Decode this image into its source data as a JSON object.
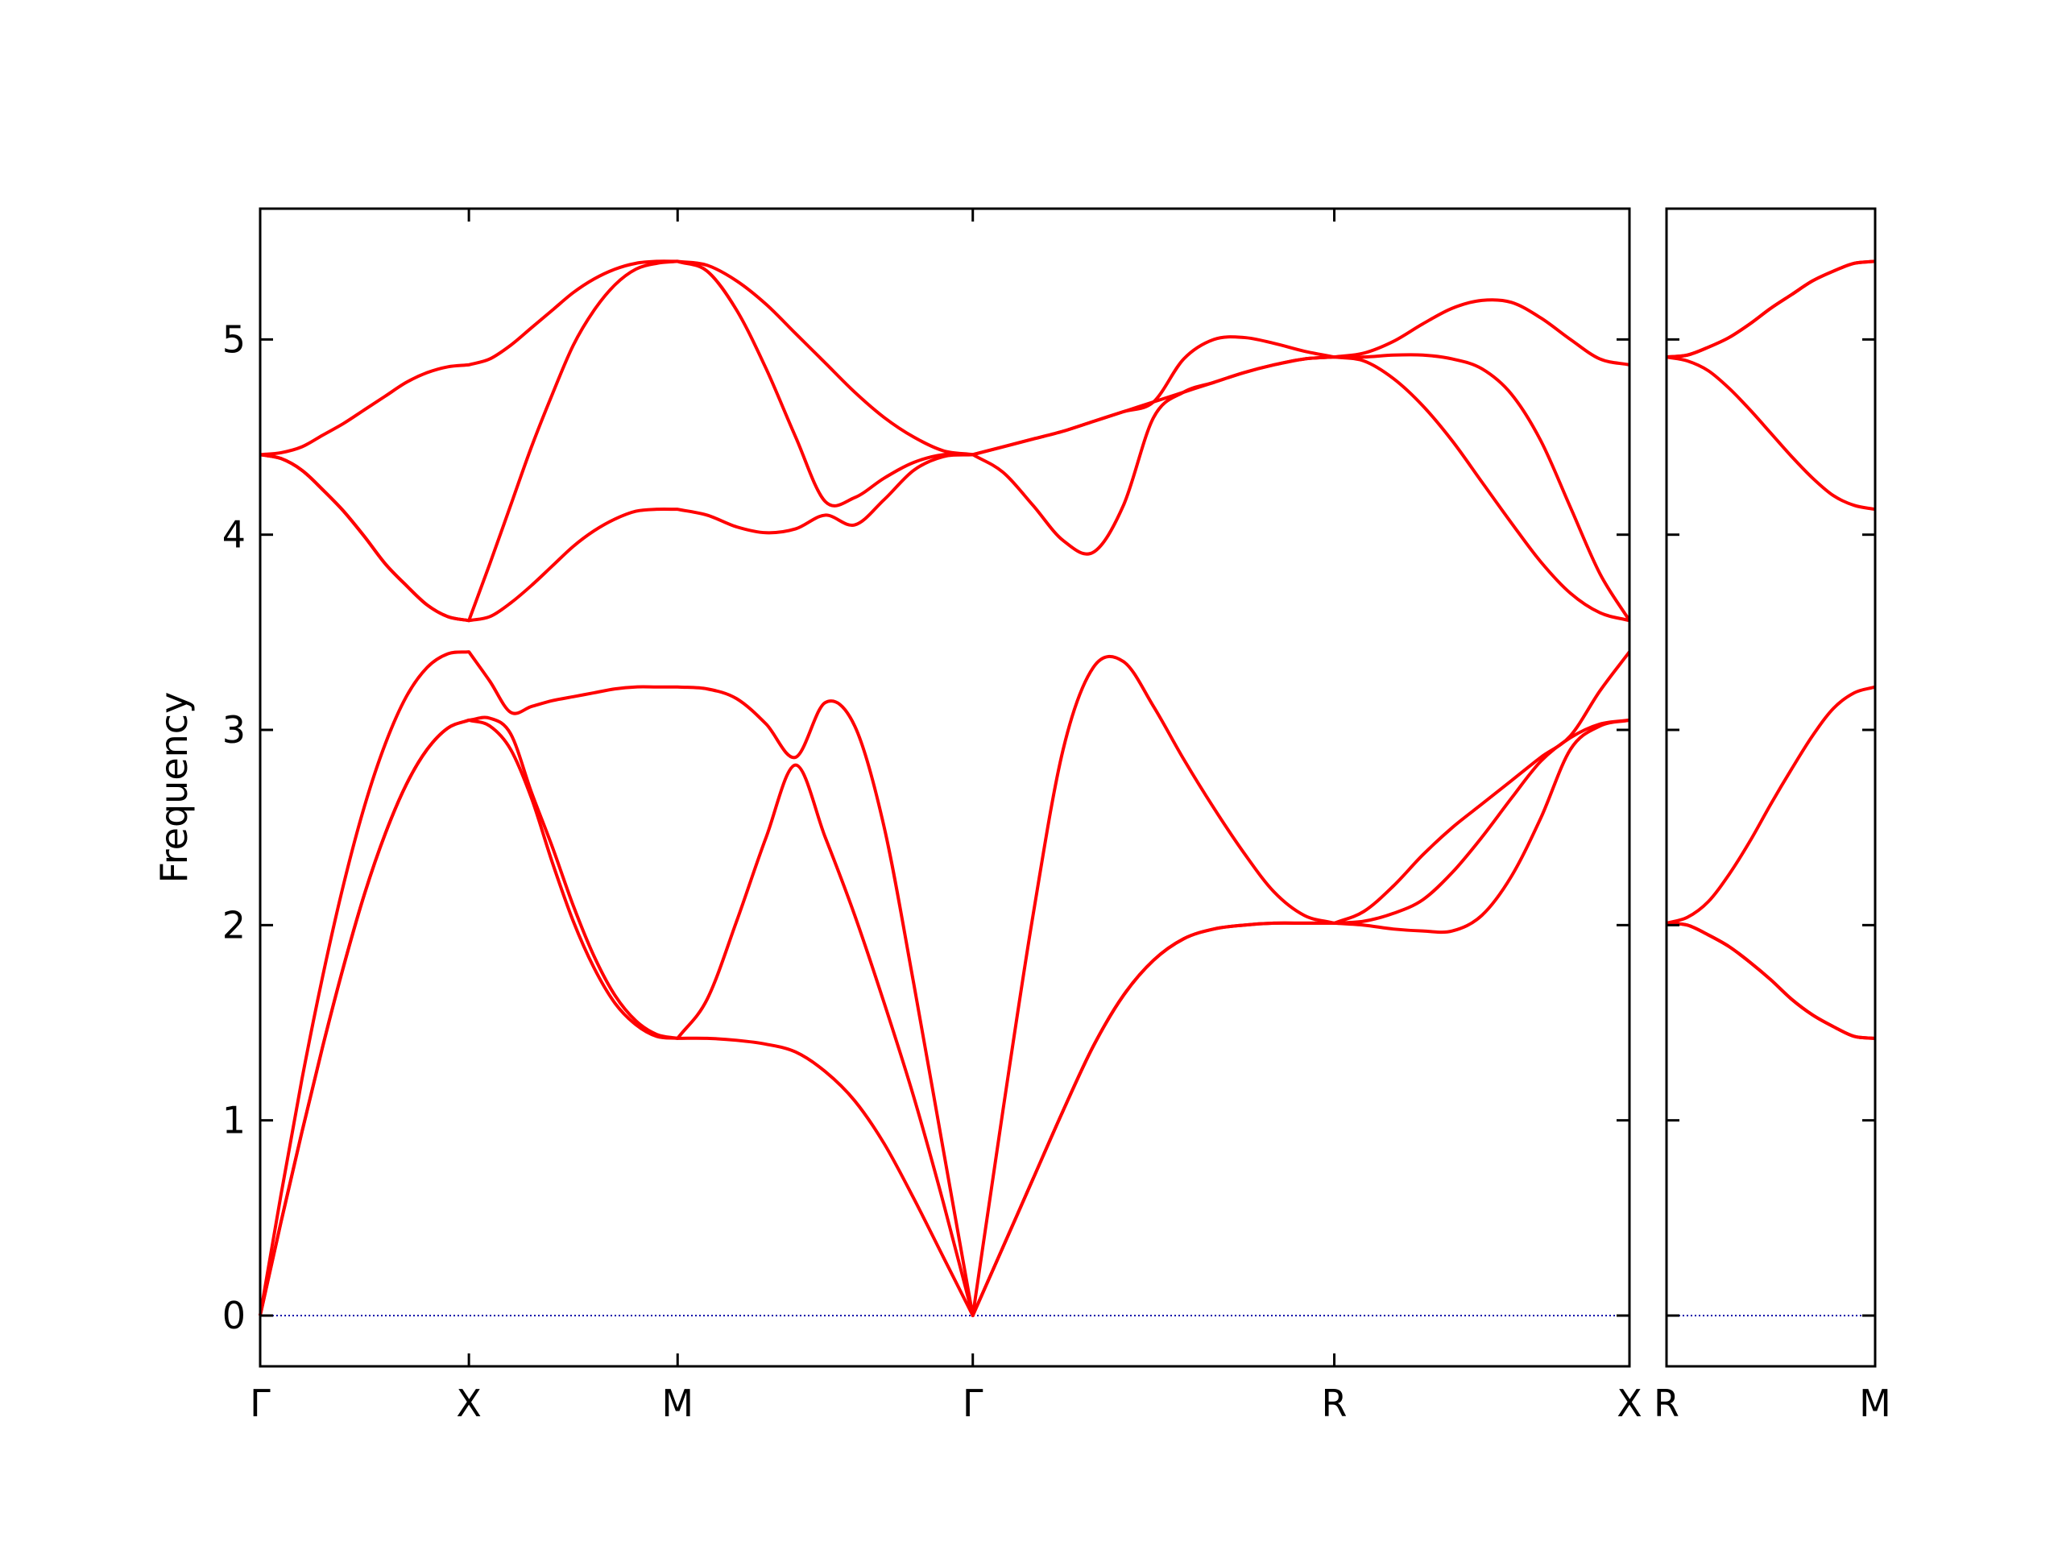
{
  "chart_data": [
    {
      "type": "line",
      "ylabel": "Frequency",
      "color": "#ff0000",
      "xlim": [
        0,
        3.2802
      ],
      "ylim": [
        -0.26,
        5.67
      ],
      "xticks": [
        {
          "value": 0,
          "label": "Γ"
        },
        {
          "value": 0.5,
          "label": "X"
        },
        {
          "value": 1.0,
          "label": "M"
        },
        {
          "value": 1.7071,
          "label": "Γ"
        },
        {
          "value": 2.5731,
          "label": "R"
        },
        {
          "value": 3.2802,
          "label": "X"
        }
      ],
      "yticks": [
        0,
        1,
        2,
        3,
        4,
        5
      ],
      "ytick_labels": true,
      "hline": {
        "value": 0,
        "color": "#0000aa"
      },
      "x": [
        0,
        0.05,
        0.1,
        0.15,
        0.2,
        0.25,
        0.3,
        0.35,
        0.4,
        0.45,
        0.5,
        0.55,
        0.6,
        0.65,
        0.7,
        0.75,
        0.8,
        0.85,
        0.9,
        0.95,
        1.0,
        1.0707,
        1.1414,
        1.2121,
        1.2828,
        1.3536,
        1.4243,
        1.495,
        1.5657,
        1.6364,
        1.7071,
        1.7793,
        1.8514,
        1.9236,
        1.9958,
        2.068,
        2.1401,
        2.2123,
        2.2845,
        2.3566,
        2.4288,
        2.501,
        2.5731,
        2.6438,
        2.7145,
        2.7852,
        2.8559,
        2.9266,
        2.9974,
        3.0681,
        3.1388,
        3.2095,
        3.2802
      ],
      "series": [
        {
          "values": [
            0,
            0.48,
            0.94,
            1.38,
            1.79,
            2.16,
            2.47,
            2.72,
            2.9,
            3.01,
            3.05,
            3.02,
            2.9,
            2.65,
            2.32,
            2.02,
            1.78,
            1.6,
            1.49,
            1.43,
            1.42,
            1.42,
            1.41,
            1.39,
            1.35,
            1.25,
            1.1,
            0.88,
            0.6,
            0.3,
            0,
            0.35,
            0.7,
            1.05,
            1.38,
            1.64,
            1.82,
            1.93,
            1.98,
            2.0,
            2.01,
            2.01,
            2.01,
            2.0,
            1.98,
            1.97,
            1.97,
            2.05,
            2.25,
            2.55,
            2.9,
            3.02,
            3.05
          ]
        },
        {
          "values": [
            0,
            0.48,
            0.94,
            1.38,
            1.79,
            2.16,
            2.47,
            2.72,
            2.9,
            3.01,
            3.05,
            3.06,
            2.98,
            2.68,
            2.4,
            2.1,
            1.84,
            1.64,
            1.51,
            1.44,
            1.42,
            1.62,
            2.02,
            2.45,
            2.82,
            2.45,
            2.05,
            1.6,
            1.12,
            0.58,
            0,
            0.35,
            0.7,
            1.05,
            1.38,
            1.64,
            1.82,
            1.93,
            1.98,
            2.0,
            2.01,
            2.01,
            2.01,
            2.02,
            2.06,
            2.13,
            2.27,
            2.45,
            2.65,
            2.84,
            2.96,
            3.03,
            3.05
          ]
        },
        {
          "values": [
            0,
            0.62,
            1.21,
            1.74,
            2.21,
            2.61,
            2.93,
            3.17,
            3.32,
            3.39,
            3.4,
            3.25,
            3.09,
            3.12,
            3.15,
            3.17,
            3.19,
            3.21,
            3.22,
            3.22,
            3.22,
            3.21,
            3.16,
            3.03,
            2.86,
            3.14,
            3.02,
            2.5,
            1.7,
            0.85,
            0,
            1.05,
            2.05,
            2.9,
            3.32,
            3.35,
            3.12,
            2.85,
            2.6,
            2.37,
            2.17,
            2.05,
            2.01,
            2.07,
            2.2,
            2.36,
            2.5,
            2.62,
            2.74,
            2.86,
            2.97,
            3.2,
            3.4
          ]
        },
        {
          "values": [
            4.41,
            4.39,
            4.33,
            4.23,
            4.12,
            3.99,
            3.85,
            3.74,
            3.64,
            3.58,
            3.56,
            3.58,
            3.65,
            3.74,
            3.84,
            3.94,
            4.02,
            4.08,
            4.12,
            4.13,
            4.13,
            4.1,
            4.04,
            4.01,
            4.03,
            4.1,
            4.05,
            4.18,
            4.33,
            4.4,
            4.41,
            4.32,
            4.15,
            3.97,
            3.91,
            4.15,
            4.6,
            4.73,
            4.78,
            4.83,
            4.87,
            4.9,
            4.91,
            4.89,
            4.8,
            4.66,
            4.48,
            4.27,
            4.06,
            3.86,
            3.7,
            3.6,
            3.56
          ]
        },
        {
          "values": [
            4.41,
            4.39,
            4.33,
            4.23,
            4.12,
            3.99,
            3.85,
            3.74,
            3.64,
            3.58,
            3.56,
            3.85,
            4.15,
            4.45,
            4.72,
            4.97,
            5.15,
            5.28,
            5.36,
            5.39,
            5.4,
            5.35,
            5.15,
            4.85,
            4.5,
            4.17,
            4.19,
            4.29,
            4.37,
            4.41,
            4.41,
            4.45,
            4.49,
            4.53,
            4.58,
            4.63,
            4.68,
            4.73,
            4.78,
            4.83,
            4.87,
            4.9,
            4.91,
            4.91,
            4.92,
            4.92,
            4.9,
            4.85,
            4.72,
            4.48,
            4.14,
            3.8,
            3.56
          ]
        },
        {
          "values": [
            4.41,
            4.42,
            4.45,
            4.51,
            4.57,
            4.64,
            4.71,
            4.78,
            4.83,
            4.86,
            4.87,
            4.9,
            4.97,
            5.06,
            5.15,
            5.24,
            5.31,
            5.36,
            5.39,
            5.4,
            5.4,
            5.38,
            5.3,
            5.18,
            5.03,
            4.88,
            4.73,
            4.6,
            4.5,
            4.43,
            4.41,
            4.45,
            4.49,
            4.53,
            4.58,
            4.63,
            4.68,
            4.9,
            5.0,
            5.01,
            4.98,
            4.94,
            4.91,
            4.93,
            4.99,
            5.08,
            5.16,
            5.2,
            5.19,
            5.11,
            5.0,
            4.9,
            4.87
          ]
        }
      ]
    },
    {
      "type": "line",
      "color": "#ff0000",
      "xlim": [
        0,
        0.5
      ],
      "ylim": [
        -0.26,
        5.67
      ],
      "xticks": [
        {
          "value": 0,
          "label": "R"
        },
        {
          "value": 0.5,
          "label": "M"
        }
      ],
      "yticks": [
        0,
        1,
        2,
        3,
        4,
        5
      ],
      "ytick_labels": false,
      "hline": {
        "value": 0,
        "color": "#0000aa"
      },
      "x": [
        0,
        0.05,
        0.1,
        0.15,
        0.2,
        0.25,
        0.3,
        0.35,
        0.4,
        0.45,
        0.5
      ],
      "series": [
        {
          "values": [
            2.01,
            2.0,
            1.95,
            1.89,
            1.81,
            1.72,
            1.62,
            1.54,
            1.48,
            1.43,
            1.42
          ]
        },
        {
          "values": [
            2.01,
            2.0,
            1.95,
            1.89,
            1.81,
            1.72,
            1.62,
            1.54,
            1.48,
            1.43,
            1.42
          ]
        },
        {
          "values": [
            2.01,
            2.04,
            2.12,
            2.26,
            2.43,
            2.62,
            2.8,
            2.97,
            3.11,
            3.19,
            3.22
          ]
        },
        {
          "values": [
            4.91,
            4.89,
            4.84,
            4.75,
            4.64,
            4.52,
            4.4,
            4.29,
            4.2,
            4.15,
            4.13
          ]
        },
        {
          "values": [
            4.91,
            4.92,
            4.96,
            5.01,
            5.08,
            5.16,
            5.23,
            5.3,
            5.35,
            5.39,
            5.4
          ]
        },
        {
          "values": [
            4.91,
            4.92,
            4.96,
            5.01,
            5.08,
            5.16,
            5.23,
            5.3,
            5.35,
            5.39,
            5.4
          ]
        }
      ]
    }
  ]
}
